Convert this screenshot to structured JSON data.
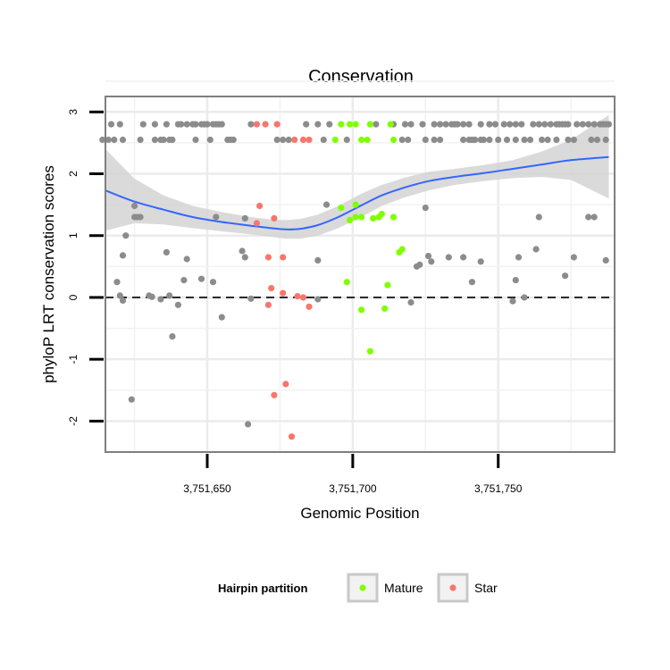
{
  "chart_data": {
    "type": "scatter",
    "title": "Conservation",
    "xlabel": "Genomic Position",
    "ylabel": "phyloP LRT conservation scores",
    "xlim": [
      3751615,
      3751790
    ],
    "ylim": [
      -2.5,
      3.25
    ],
    "x_ticks": [
      3751650,
      3751700,
      3751750
    ],
    "x_tick_labels": [
      "3,751,650",
      "3,751,700",
      "3,751,750"
    ],
    "y_ticks": [
      -2,
      -1,
      0,
      1,
      2,
      3
    ],
    "y_tick_labels": [
      "-2",
      "-1",
      "0",
      "1",
      "2",
      "3"
    ],
    "reference_line": {
      "y": 0,
      "style": "dashed"
    },
    "legend": {
      "title": "Hairpin partition",
      "position": "bottom",
      "entries": [
        {
          "label": "Mature",
          "color": "#7fff00"
        },
        {
          "label": "Star",
          "color": "#f8766d"
        }
      ]
    },
    "colors": {
      "other": "#8c8c8c",
      "Mature": "#7fff00",
      "Star": "#f8766d",
      "smooth": "#3366ff",
      "band": "#d3d3d3"
    },
    "series": [
      {
        "name": "other",
        "points": [
          [
            3751617,
            2.8
          ],
          [
            3751620,
            2.8
          ],
          [
            3751628,
            2.8
          ],
          [
            3751632,
            2.8
          ],
          [
            3751636,
            2.8
          ],
          [
            3751640,
            2.8
          ],
          [
            3751641,
            2.8
          ],
          [
            3751643,
            2.8
          ],
          [
            3751645,
            2.8
          ],
          [
            3751646,
            2.8
          ],
          [
            3751648,
            2.8
          ],
          [
            3751649,
            2.8
          ],
          [
            3751650,
            2.8
          ],
          [
            3751652,
            2.8
          ],
          [
            3751653,
            2.8
          ],
          [
            3751654,
            2.8
          ],
          [
            3751655,
            2.8
          ],
          [
            3751665,
            2.8
          ],
          [
            3751684,
            2.8
          ],
          [
            3751688,
            2.8
          ],
          [
            3751692,
            2.8
          ],
          [
            3751708,
            2.8
          ],
          [
            3751714,
            2.8
          ],
          [
            3751718,
            2.8
          ],
          [
            3751720,
            2.8
          ],
          [
            3751724,
            2.8
          ],
          [
            3751728,
            2.8
          ],
          [
            3751730,
            2.8
          ],
          [
            3751732,
            2.8
          ],
          [
            3751734,
            2.8
          ],
          [
            3751735,
            2.8
          ],
          [
            3751736,
            2.8
          ],
          [
            3751738,
            2.8
          ],
          [
            3751740,
            2.8
          ],
          [
            3751744,
            2.8
          ],
          [
            3751747,
            2.8
          ],
          [
            3751749,
            2.8
          ],
          [
            3751752,
            2.8
          ],
          [
            3751754,
            2.8
          ],
          [
            3751756,
            2.8
          ],
          [
            3751758,
            2.8
          ],
          [
            3751762,
            2.8
          ],
          [
            3751764,
            2.8
          ],
          [
            3751766,
            2.8
          ],
          [
            3751768,
            2.8
          ],
          [
            3751770,
            2.8
          ],
          [
            3751771,
            2.8
          ],
          [
            3751772,
            2.8
          ],
          [
            3751773,
            2.8
          ],
          [
            3751774,
            2.8
          ],
          [
            3751777,
            2.8
          ],
          [
            3751779,
            2.8
          ],
          [
            3751781,
            2.8
          ],
          [
            3751783,
            2.8
          ],
          [
            3751785,
            2.8
          ],
          [
            3751786,
            2.8
          ],
          [
            3751787,
            2.8
          ],
          [
            3751788,
            2.8
          ],
          [
            3751614,
            2.55
          ],
          [
            3751616,
            2.55
          ],
          [
            3751618,
            2.55
          ],
          [
            3751621,
            2.55
          ],
          [
            3751627,
            2.55
          ],
          [
            3751632,
            2.55
          ],
          [
            3751634,
            2.55
          ],
          [
            3751635,
            2.55
          ],
          [
            3751637,
            2.55
          ],
          [
            3751638,
            2.55
          ],
          [
            3751646,
            2.55
          ],
          [
            3751651,
            2.55
          ],
          [
            3751657,
            2.55
          ],
          [
            3751658,
            2.55
          ],
          [
            3751659,
            2.55
          ],
          [
            3751674,
            2.55
          ],
          [
            3751676,
            2.55
          ],
          [
            3751678,
            2.55
          ],
          [
            3751690,
            2.55
          ],
          [
            3751698,
            2.55
          ],
          [
            3751717,
            2.55
          ],
          [
            3751719,
            2.55
          ],
          [
            3751725,
            2.55
          ],
          [
            3751728,
            2.55
          ],
          [
            3751730,
            2.55
          ],
          [
            3751738,
            2.55
          ],
          [
            3751740,
            2.55
          ],
          [
            3751741,
            2.55
          ],
          [
            3751742,
            2.55
          ],
          [
            3751744,
            2.55
          ],
          [
            3751745,
            2.55
          ],
          [
            3751747,
            2.55
          ],
          [
            3751750,
            2.55
          ],
          [
            3751753,
            2.55
          ],
          [
            3751756,
            2.55
          ],
          [
            3751759,
            2.55
          ],
          [
            3751761,
            2.55
          ],
          [
            3751765,
            2.55
          ],
          [
            3751767,
            2.55
          ],
          [
            3751770,
            2.55
          ],
          [
            3751774,
            2.55
          ],
          [
            3751776,
            2.55
          ],
          [
            3751782,
            2.55
          ],
          [
            3751784,
            2.55
          ],
          [
            3751787,
            2.55
          ],
          [
            3751625,
            1.48
          ],
          [
            3751625,
            1.3
          ],
          [
            3751626,
            1.3
          ],
          [
            3751627,
            1.3
          ],
          [
            3751622,
            1.0
          ],
          [
            3751653,
            1.3
          ],
          [
            3751663,
            1.28
          ],
          [
            3751691,
            1.5
          ],
          [
            3751725,
            1.45
          ],
          [
            3751764,
            1.3
          ],
          [
            3751781,
            1.3
          ],
          [
            3751783,
            1.3
          ],
          [
            3751621,
            0.68
          ],
          [
            3751619,
            0.25
          ],
          [
            3751620,
            0.03
          ],
          [
            3751621,
            -0.05
          ],
          [
            3751624,
            -1.65
          ],
          [
            3751630,
            0.03
          ],
          [
            3751631,
            0.01
          ],
          [
            3751634,
            -0.03
          ],
          [
            3751636,
            0.73
          ],
          [
            3751637,
            0.03
          ],
          [
            3751638,
            -0.63
          ],
          [
            3751640,
            -0.12
          ],
          [
            3751642,
            0.28
          ],
          [
            3751643,
            0.62
          ],
          [
            3751648,
            0.3
          ],
          [
            3751652,
            0.25
          ],
          [
            3751655,
            -0.32
          ],
          [
            3751662,
            0.75
          ],
          [
            3751663,
            0.65
          ],
          [
            3751665,
            -0.02
          ],
          [
            3751664,
            -2.05
          ],
          [
            3751688,
            0.6
          ],
          [
            3751688,
            -0.03
          ],
          [
            3751720,
            -0.08
          ],
          [
            3751722,
            0.5
          ],
          [
            3751723,
            0.53
          ],
          [
            3751726,
            0.67
          ],
          [
            3751727,
            0.58
          ],
          [
            3751733,
            0.65
          ],
          [
            3751738,
            0.65
          ],
          [
            3751741,
            0.25
          ],
          [
            3751744,
            0.58
          ],
          [
            3751755,
            -0.06
          ],
          [
            3751756,
            0.28
          ],
          [
            3751757,
            0.65
          ],
          [
            3751759,
            0.0
          ],
          [
            3751763,
            0.78
          ],
          [
            3751773,
            0.35
          ],
          [
            3751776,
            0.65
          ],
          [
            3751787,
            0.6
          ]
        ]
      },
      {
        "name": "Mature",
        "points": [
          [
            3751696,
            2.8
          ],
          [
            3751699,
            2.8
          ],
          [
            3751701,
            2.8
          ],
          [
            3751706,
            2.8
          ],
          [
            3751713,
            2.8
          ],
          [
            3751694,
            2.55
          ],
          [
            3751703,
            2.55
          ],
          [
            3751705,
            2.55
          ],
          [
            3751714,
            2.55
          ],
          [
            3751696,
            1.45
          ],
          [
            3751701,
            1.5
          ],
          [
            3751699,
            1.25
          ],
          [
            3751701,
            1.3
          ],
          [
            3751703,
            1.3
          ],
          [
            3751707,
            1.28
          ],
          [
            3751709,
            1.3
          ],
          [
            3751710,
            1.35
          ],
          [
            3751714,
            1.3
          ],
          [
            3751716,
            0.73
          ],
          [
            3751717,
            0.78
          ],
          [
            3751698,
            0.25
          ],
          [
            3751712,
            0.2
          ],
          [
            3751703,
            -0.2
          ],
          [
            3751711,
            -0.18
          ],
          [
            3751706,
            -0.87
          ]
        ]
      },
      {
        "name": "Star",
        "points": [
          [
            3751667,
            2.8
          ],
          [
            3751670,
            2.8
          ],
          [
            3751674,
            2.8
          ],
          [
            3751680,
            2.55
          ],
          [
            3751683,
            2.55
          ],
          [
            3751685,
            2.55
          ],
          [
            3751668,
            1.48
          ],
          [
            3751673,
            1.28
          ],
          [
            3751667,
            1.2
          ],
          [
            3751671,
            0.65
          ],
          [
            3751676,
            0.65
          ],
          [
            3751672,
            0.15
          ],
          [
            3751676,
            0.07
          ],
          [
            3751681,
            0.02
          ],
          [
            3751683,
            0.0
          ],
          [
            3751671,
            -0.12
          ],
          [
            3751685,
            -0.15
          ],
          [
            3751673,
            -1.58
          ],
          [
            3751677,
            -1.4
          ],
          [
            3751679,
            -2.25
          ]
        ]
      }
    ],
    "smooth_fit": {
      "x": [
        3751615,
        3751625,
        3751635,
        3751645,
        3751655,
        3751665,
        3751672,
        3751677,
        3751682,
        3751688,
        3751695,
        3751703,
        3751710,
        3751718,
        3751726,
        3751735,
        3751745,
        3751755,
        3751765,
        3751775,
        3751788
      ],
      "y": [
        1.73,
        1.55,
        1.42,
        1.3,
        1.22,
        1.16,
        1.12,
        1.1,
        1.11,
        1.17,
        1.3,
        1.49,
        1.65,
        1.78,
        1.88,
        1.95,
        2.01,
        2.08,
        2.15,
        2.22,
        2.27
      ],
      "lower": [
        1.08,
        1.2,
        1.18,
        1.12,
        1.07,
        1.02,
        0.98,
        0.95,
        0.95,
        1.0,
        1.12,
        1.3,
        1.48,
        1.62,
        1.73,
        1.82,
        1.88,
        1.93,
        1.95,
        1.9,
        1.6
      ],
      "upper": [
        2.4,
        1.92,
        1.65,
        1.48,
        1.38,
        1.3,
        1.26,
        1.25,
        1.27,
        1.34,
        1.48,
        1.68,
        1.82,
        1.94,
        2.03,
        2.08,
        2.14,
        2.22,
        2.36,
        2.55,
        2.95
      ]
    }
  }
}
